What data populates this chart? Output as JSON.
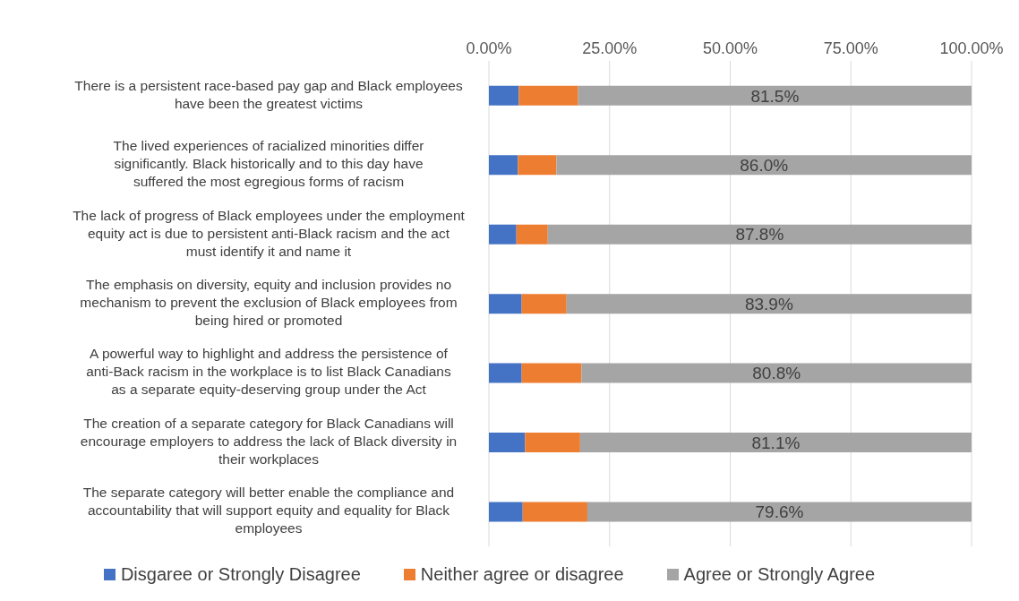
{
  "chart_data": {
    "type": "bar",
    "orientation": "horizontal",
    "stacked": true,
    "categories": [
      "There is a persistent race-based pay gap and Black employees have been the greatest victims",
      "The lived experiences of racialized minorities differ significantly. Black historically and to this day have suffered the most egregious forms of racism",
      "The lack of progress of Black employees under the employment equity act is due to persistent anti-Black racism and the act must identify it and name it",
      "The emphasis on diversity, equity and inclusion provides no mechanism to prevent the exclusion of Black employees from being hired or promoted",
      "A powerful way to highlight and address the persistence of anti-Back racism in the workplace is to list Black Canadians as a separate equity-deserving group under the Act",
      "The creation of a separate category for Black Canadians will encourage employers to address the lack of Black diversity in their workplaces",
      "The separate category will better enable the compliance and accountability that will support equity and equality for Black employees"
    ],
    "series": [
      {
        "name": "Disgaree or Strongly Disagree",
        "color": "#4472c4",
        "values": [
          6.2,
          6.0,
          5.7,
          6.8,
          6.8,
          7.5,
          7.0
        ]
      },
      {
        "name": "Neither agree or disagree",
        "color": "#ed7d31",
        "values": [
          12.3,
          8.0,
          6.5,
          9.3,
          12.4,
          11.4,
          13.4
        ]
      },
      {
        "name": "Agree or Strongly Agree",
        "color": "#a5a5a5",
        "values": [
          81.5,
          86.0,
          87.8,
          83.9,
          80.8,
          81.1,
          79.6
        ],
        "value_labels": [
          "81.5%",
          "86.0%",
          "87.8%",
          "83.9%",
          "80.8%",
          "81.1%",
          "79.6%"
        ]
      }
    ],
    "xlim": [
      0,
      100
    ],
    "xticks": [
      {
        "value": 0,
        "label": "0.00%"
      },
      {
        "value": 25,
        "label": "25.00%"
      },
      {
        "value": 50,
        "label": "50.00%"
      },
      {
        "value": 75,
        "label": "75.00%"
      },
      {
        "value": 100,
        "label": "100.00%"
      }
    ],
    "grid": "x",
    "legend": "bottom"
  }
}
